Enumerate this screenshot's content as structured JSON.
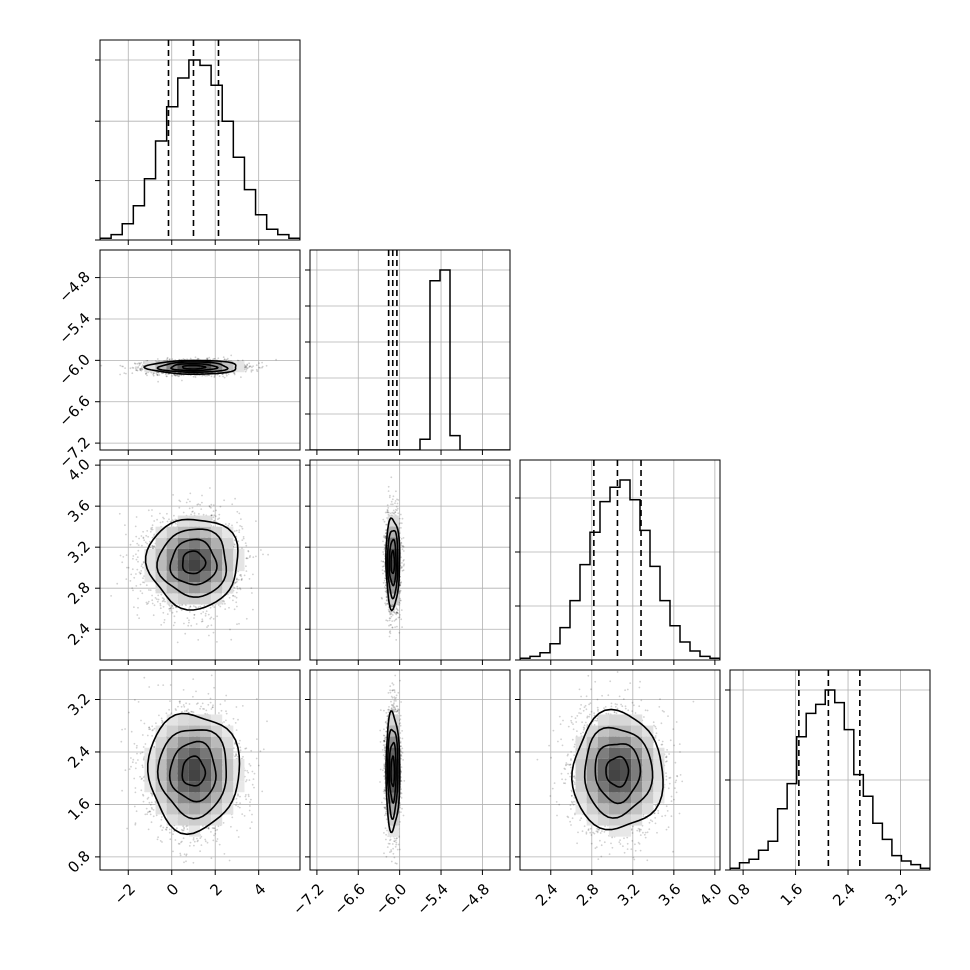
{
  "chart_data": {
    "type": "corner",
    "title": "",
    "parameters": [
      {
        "range": [
          -3.3,
          5.9
        ],
        "ticks": [
          -2,
          0,
          2,
          4
        ],
        "tick_labels": [
          "−2",
          "0",
          "2",
          "4"
        ],
        "mean": 1.0,
        "sd": 1.05,
        "quantiles": [
          -0.15,
          1.0,
          2.15
        ],
        "hist": [
          0.01,
          0.03,
          0.09,
          0.19,
          0.34,
          0.55,
          0.74,
          0.9,
          1.0,
          0.97,
          0.86,
          0.66,
          0.46,
          0.28,
          0.14,
          0.06,
          0.03,
          0.01
        ]
      },
      {
        "range": [
          -7.3,
          -4.4
        ],
        "ticks": [
          -7.2,
          -6.6,
          -6.0,
          -5.4,
          -4.8
        ],
        "tick_labels": [
          "−7.2",
          "−6.6",
          "−6.0",
          "−5.4",
          "−4.8"
        ],
        "mean": -6.1,
        "sd": 0.05,
        "quantiles": [
          -6.16,
          -6.1,
          -6.04
        ],
        "hist": [
          0.0,
          0.0,
          0.0,
          0.0,
          0.0,
          0.0,
          0.0,
          0.0,
          0.0,
          0.0,
          0.0,
          0.06,
          0.94,
          1.0,
          0.08,
          0.0,
          0.0,
          0.0,
          0.0,
          0.0
        ]
      },
      {
        "range": [
          2.1,
          4.05
        ],
        "ticks": [
          2.4,
          2.8,
          3.2,
          3.6,
          4.0
        ],
        "tick_labels": [
          "2.4",
          "2.8",
          "3.2",
          "3.6",
          "4.0"
        ],
        "mean": 3.05,
        "sd": 0.22,
        "quantiles": [
          2.82,
          3.05,
          3.28
        ],
        "hist": [
          0.01,
          0.02,
          0.04,
          0.09,
          0.18,
          0.33,
          0.53,
          0.71,
          0.88,
          0.96,
          1.0,
          0.89,
          0.72,
          0.52,
          0.33,
          0.19,
          0.1,
          0.05,
          0.02,
          0.01
        ]
      },
      {
        "range": [
          0.6,
          3.65
        ],
        "ticks": [
          0.8,
          1.6,
          2.4,
          3.2
        ],
        "tick_labels": [
          "0.8",
          "1.6",
          "2.4",
          "3.2"
        ],
        "mean": 2.1,
        "sd": 0.45,
        "quantiles": [
          1.65,
          2.1,
          2.58
        ],
        "hist": [
          0.01,
          0.04,
          0.06,
          0.11,
          0.16,
          0.34,
          0.48,
          0.74,
          0.87,
          0.92,
          1.0,
          0.93,
          0.78,
          0.53,
          0.41,
          0.26,
          0.17,
          0.08,
          0.05,
          0.03,
          0.01
        ]
      }
    ],
    "hist_yticks": [
      [
        0.0,
        0.33,
        0.66,
        1.0
      ],
      [
        0.0,
        0.2,
        0.4,
        0.6,
        0.8,
        1.0
      ],
      [
        0.0,
        0.3,
        0.6,
        0.9
      ],
      [
        0.0,
        0.5,
        1.0
      ]
    ],
    "contour_levels": [
      0.5,
      1.0,
      1.5,
      2.0
    ],
    "grid": true,
    "quantile_style": "dashed"
  }
}
